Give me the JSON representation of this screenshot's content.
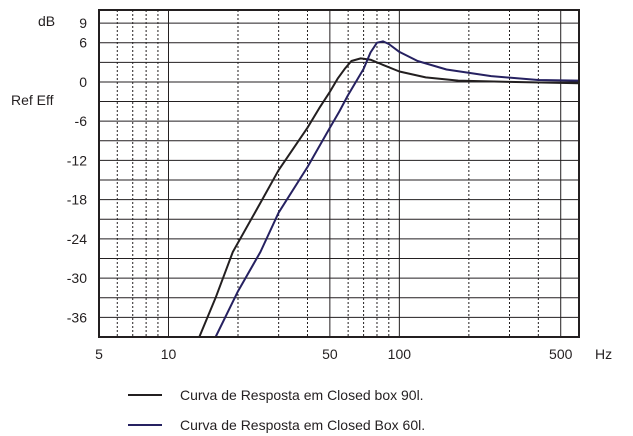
{
  "chart_data": {
    "type": "line",
    "title": "",
    "xlabel": "",
    "ylabel": "",
    "x_unit_label": "Hz",
    "y_unit_label": "dB",
    "y_reference_label": "Ref Eff",
    "x_scale": "log",
    "xlim": [
      5,
      600
    ],
    "ylim": [
      -39,
      11
    ],
    "x_ticks": [
      {
        "value": 5,
        "label": "5"
      },
      {
        "value": 10,
        "label": "10"
      },
      {
        "value": 50,
        "label": "50"
      },
      {
        "value": 100,
        "label": "100"
      },
      {
        "value": 500,
        "label": "500"
      }
    ],
    "y_ticks": [
      {
        "value": 9,
        "label": "9"
      },
      {
        "value": 6,
        "label": "6"
      },
      {
        "value": 0,
        "label": "0"
      },
      {
        "value": -6,
        "label": "-6"
      },
      {
        "value": -12,
        "label": "-12"
      },
      {
        "value": -18,
        "label": "-18"
      },
      {
        "value": -24,
        "label": "-24"
      },
      {
        "value": -30,
        "label": "-30"
      },
      {
        "value": -36,
        "label": "-36"
      }
    ],
    "grid": {
      "major_x": [
        5,
        10,
        50,
        100,
        500
      ],
      "minor_x": [
        6,
        7,
        8,
        9,
        20,
        30,
        40,
        60,
        70,
        80,
        90,
        200,
        300,
        400
      ],
      "y_lines": [
        9,
        6,
        3,
        0,
        -3,
        -6,
        -9,
        -12,
        -15,
        -18,
        -21,
        -24,
        -27,
        -30,
        -33,
        -36
      ]
    },
    "legend_position": "bottom",
    "series": [
      {
        "name": "Curva de Resposta em Closed box 90l.",
        "color": "#231f20",
        "points": [
          [
            13.6,
            -39
          ],
          [
            16,
            -33
          ],
          [
            19,
            -26
          ],
          [
            25,
            -18.5
          ],
          [
            30,
            -13.5
          ],
          [
            40,
            -7
          ],
          [
            45,
            -4
          ],
          [
            50,
            -1.5
          ],
          [
            54,
            0.5
          ],
          [
            58,
            2
          ],
          [
            62,
            3.2
          ],
          [
            68,
            3.6
          ],
          [
            75,
            3.4
          ],
          [
            85,
            2.6
          ],
          [
            100,
            1.6
          ],
          [
            130,
            0.7
          ],
          [
            180,
            0.2
          ],
          [
            300,
            0
          ],
          [
            600,
            -0.2
          ]
        ]
      },
      {
        "name": "Curva de Resposta em Closed Box 60l.",
        "color": "#262161",
        "points": [
          [
            16,
            -39
          ],
          [
            20,
            -32
          ],
          [
            25,
            -26
          ],
          [
            30,
            -20
          ],
          [
            40,
            -13
          ],
          [
            50,
            -7
          ],
          [
            55,
            -4.5
          ],
          [
            60,
            -2
          ],
          [
            70,
            2
          ],
          [
            75,
            4.5
          ],
          [
            80,
            6
          ],
          [
            85,
            6.2
          ],
          [
            90,
            5.8
          ],
          [
            100,
            4.6
          ],
          [
            120,
            3.2
          ],
          [
            160,
            1.9
          ],
          [
            250,
            0.9
          ],
          [
            400,
            0.3
          ],
          [
            600,
            0.2
          ]
        ]
      }
    ]
  }
}
